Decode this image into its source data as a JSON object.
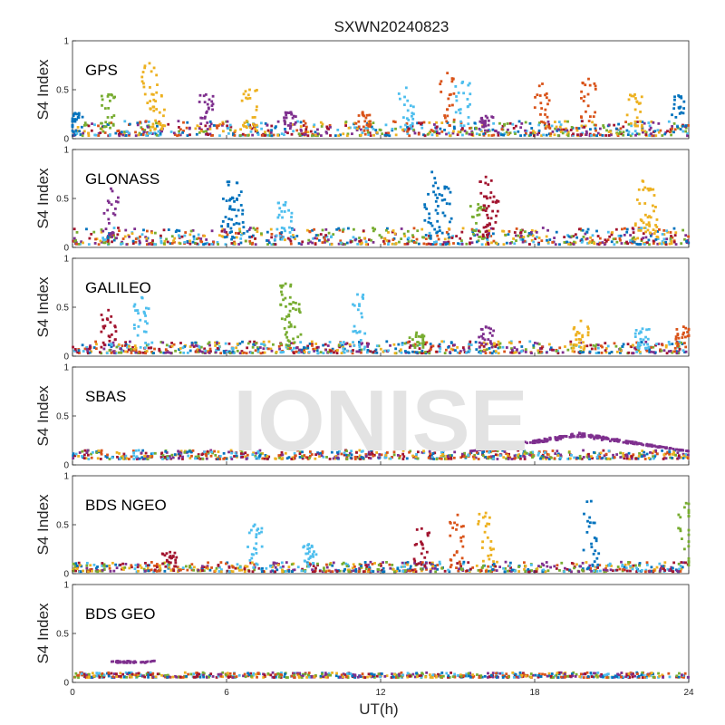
{
  "watermark": "IONISE",
  "chart_data": {
    "type": "scatter",
    "title": "SXWN20240823",
    "xlabel": "UT(h)",
    "ylabel": "S4 Index",
    "xlim": [
      0,
      24
    ],
    "ylim": [
      0,
      1
    ],
    "x_ticks": [
      "0",
      "6",
      "12",
      "18",
      "24"
    ],
    "y_ticks": [
      "0",
      "0.5",
      "1"
    ],
    "grid": false,
    "colors": [
      "#0072BD",
      "#D95319",
      "#EDB120",
      "#7E2F8E",
      "#77AC30",
      "#4DBEEE",
      "#A2142F"
    ],
    "panels": [
      {
        "label": "GPS",
        "baseline": [
          0.03,
          0.18
        ],
        "spikes": [
          {
            "x": 0.1,
            "peak": 0.26,
            "color": 0
          },
          {
            "x": 1.4,
            "peak": 0.45,
            "color": 4
          },
          {
            "x": 3.0,
            "peak": 0.77,
            "color": 2
          },
          {
            "x": 3.3,
            "peak": 0.55,
            "color": 2
          },
          {
            "x": 5.2,
            "peak": 0.45,
            "color": 3
          },
          {
            "x": 6.9,
            "peak": 0.5,
            "color": 2
          },
          {
            "x": 8.5,
            "peak": 0.27,
            "color": 3
          },
          {
            "x": 11.3,
            "peak": 0.27,
            "color": 1
          },
          {
            "x": 13.0,
            "peak": 0.52,
            "color": 5
          },
          {
            "x": 14.6,
            "peak": 0.67,
            "color": 1
          },
          {
            "x": 15.2,
            "peak": 0.58,
            "color": 5
          },
          {
            "x": 16.1,
            "peak": 0.23,
            "color": 3
          },
          {
            "x": 18.3,
            "peak": 0.56,
            "color": 1
          },
          {
            "x": 20.1,
            "peak": 0.61,
            "color": 1
          },
          {
            "x": 21.9,
            "peak": 0.45,
            "color": 2
          },
          {
            "x": 23.6,
            "peak": 0.44,
            "color": 0
          }
        ]
      },
      {
        "label": "GLONASS",
        "baseline": [
          0.03,
          0.2
        ],
        "spikes": [
          {
            "x": 1.5,
            "peak": 0.6,
            "color": 3
          },
          {
            "x": 6.1,
            "peak": 0.67,
            "color": 0
          },
          {
            "x": 6.4,
            "peak": 0.66,
            "color": 0
          },
          {
            "x": 8.3,
            "peak": 0.46,
            "color": 5
          },
          {
            "x": 14.0,
            "peak": 0.77,
            "color": 0
          },
          {
            "x": 14.5,
            "peak": 0.62,
            "color": 0
          },
          {
            "x": 15.8,
            "peak": 0.44,
            "color": 4
          },
          {
            "x": 16.1,
            "peak": 0.72,
            "color": 6
          },
          {
            "x": 16.3,
            "peak": 0.56,
            "color": 6
          },
          {
            "x": 22.2,
            "peak": 0.68,
            "color": 2
          },
          {
            "x": 22.5,
            "peak": 0.6,
            "color": 2
          }
        ]
      },
      {
        "label": "GALILEO",
        "baseline": [
          0.03,
          0.15
        ],
        "spikes": [
          {
            "x": 1.4,
            "peak": 0.47,
            "color": 6
          },
          {
            "x": 2.7,
            "peak": 0.6,
            "color": 5
          },
          {
            "x": 8.3,
            "peak": 0.74,
            "color": 4
          },
          {
            "x": 8.6,
            "peak": 0.55,
            "color": 4
          },
          {
            "x": 11.1,
            "peak": 0.63,
            "color": 5
          },
          {
            "x": 13.4,
            "peak": 0.24,
            "color": 4
          },
          {
            "x": 16.1,
            "peak": 0.3,
            "color": 3
          },
          {
            "x": 19.8,
            "peak": 0.36,
            "color": 2
          },
          {
            "x": 22.2,
            "peak": 0.28,
            "color": 5
          },
          {
            "x": 23.8,
            "peak": 0.3,
            "color": 1
          }
        ]
      },
      {
        "label": "SBAS",
        "baseline": [
          0.06,
          0.15
        ],
        "bump": {
          "from": 15.5,
          "to": 24,
          "peak": 0.32,
          "color": 3
        },
        "spikes": []
      },
      {
        "label": "BDS NGEO",
        "baseline": [
          0.02,
          0.12
        ],
        "spikes": [
          {
            "x": 3.8,
            "peak": 0.22,
            "color": 6
          },
          {
            "x": 7.1,
            "peak": 0.5,
            "color": 5
          },
          {
            "x": 9.2,
            "peak": 0.3,
            "color": 5
          },
          {
            "x": 13.6,
            "peak": 0.46,
            "color": 6
          },
          {
            "x": 15.0,
            "peak": 0.6,
            "color": 1
          },
          {
            "x": 16.1,
            "peak": 0.62,
            "color": 2
          },
          {
            "x": 20.2,
            "peak": 0.74,
            "color": 0
          },
          {
            "x": 23.9,
            "peak": 0.72,
            "color": 4
          }
        ]
      },
      {
        "label": "BDS GEO",
        "baseline": [
          0.05,
          0.1
        ],
        "segment": {
          "from": 1.5,
          "to": 3.2,
          "value": 0.21,
          "color": 3
        },
        "spikes": []
      }
    ]
  }
}
